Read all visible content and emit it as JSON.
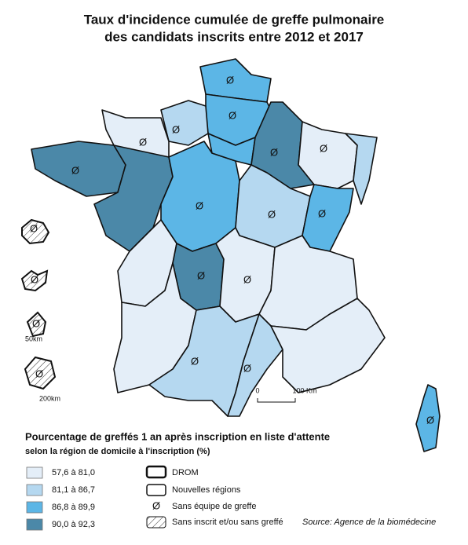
{
  "title": [
    "Taux d'incidence cumulée de greffe pulmonaire",
    "des candidats inscrits entre 2012 et 2017"
  ],
  "scale_bar": {
    "start": "0",
    "end": "100 Km"
  },
  "drom_scales": [
    "50km",
    "200km"
  ],
  "legend": {
    "title": "Pourcentage de greffés 1 an après inscription en liste d'attente",
    "subtitle": "selon la région de domicile à l'inscription (%)",
    "classes": [
      {
        "label": "57,6 à 81,0",
        "color": "#e4eef8"
      },
      {
        "label": "81,1 à 86,7",
        "color": "#b5d8f0"
      },
      {
        "label": "86,8 à 89,9",
        "color": "#5cb6e6"
      },
      {
        "label": "90,0 à 92,3",
        "color": "#4b88a8"
      }
    ],
    "items": [
      {
        "label": "DROM"
      },
      {
        "label": "Nouvelles régions"
      },
      {
        "symbol": "Ø",
        "label": "Sans équipe de greffe"
      },
      {
        "label": "Sans inscrit et/ou sans greffé"
      }
    ]
  },
  "source": "Source: Agence de la biomédecine"
}
